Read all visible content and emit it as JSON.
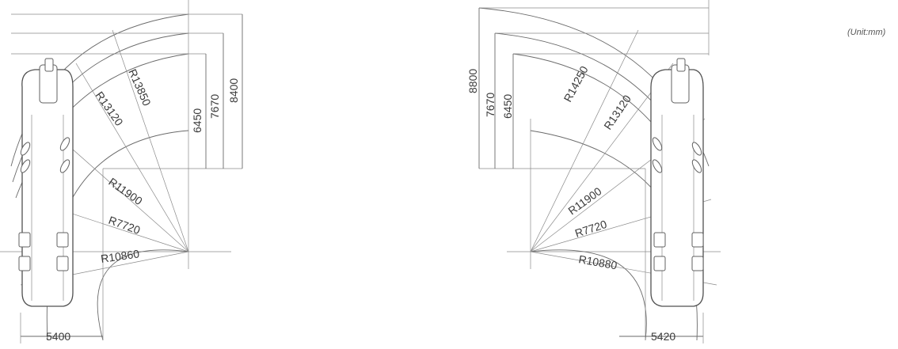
{
  "unit_label": "(Unit:mm)",
  "left_view": {
    "heights": [
      "8400",
      "7670",
      "6450"
    ],
    "radii": [
      "R13850",
      "R13120",
      "R11900",
      "R7720",
      "R10860"
    ],
    "width": "5400"
  },
  "right_view": {
    "heights": [
      "8800",
      "7670",
      "6450"
    ],
    "radii": [
      "R14250",
      "R13120",
      "R11900",
      "R7720",
      "R10880"
    ],
    "width": "5420"
  }
}
